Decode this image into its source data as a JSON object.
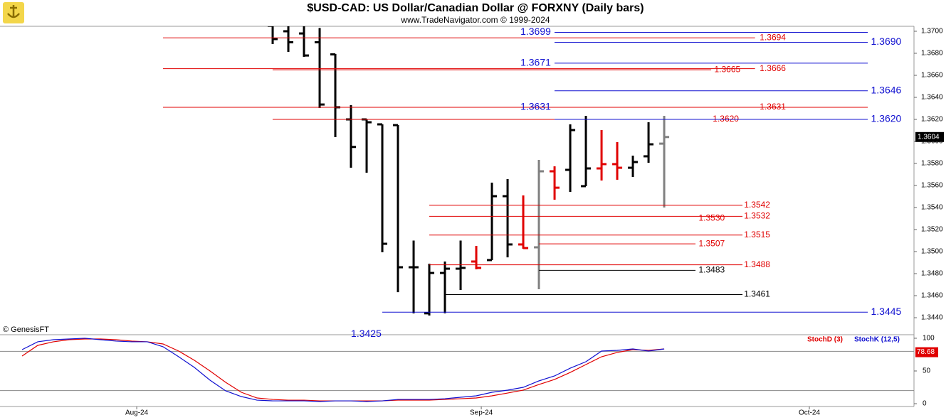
{
  "chart_data": [
    {
      "type": "ohlc",
      "title": "$USD-CAD:  US Dollar/Canadian Dollar @ FORXNY  (Daily bars)",
      "subtitle": "www.TradeNavigator.com © 1999-2024",
      "annotation": "© GenesisFT",
      "x": [
        0,
        1,
        2,
        3,
        4,
        5,
        6,
        7,
        8,
        9,
        10,
        11,
        12,
        13,
        14,
        15,
        16,
        17,
        18,
        19,
        20,
        21,
        22,
        23,
        24,
        25
      ],
      "open": [
        1.3705,
        1.37,
        1.3698,
        1.369,
        1.3679,
        1.362,
        1.362,
        1.36155,
        1.36148,
        1.34858,
        1.3444,
        1.34806,
        1.34845,
        1.3491,
        1.34923,
        1.35503,
        1.35065,
        1.35039,
        1.35729,
        1.35742,
        1.35594,
        1.35755,
        1.35794,
        1.35761,
        1.35865,
        1.3598
      ],
      "high": [
        1.371,
        1.3708,
        1.3705,
        1.3703,
        1.36794,
        1.3633,
        1.362,
        1.36155,
        1.36148,
        1.351,
        1.3489,
        1.3491,
        1.351,
        1.35052,
        1.35626,
        1.35658,
        1.3551,
        1.35832,
        1.35774,
        1.36155,
        1.36232,
        1.36103,
        1.35994,
        1.35871,
        1.36174,
        1.36232
      ],
      "low": [
        1.36884,
        1.36813,
        1.36768,
        1.36303,
        1.36039,
        1.35761,
        1.35716,
        1.34994,
        1.34632,
        1.34439,
        1.3442,
        1.3444,
        1.34652,
        1.34839,
        1.34923,
        1.34948,
        1.35026,
        1.34658,
        1.35471,
        1.35542,
        1.35594,
        1.35645,
        1.35652,
        1.35677,
        1.35806,
        1.354
      ],
      "close": [
        1.36929,
        1.369,
        1.3678,
        1.36335,
        1.3631,
        1.3595,
        1.36174,
        1.35071,
        1.34858,
        1.34858,
        1.34806,
        1.34845,
        1.34852,
        1.34852,
        1.35503,
        1.35065,
        1.35032,
        1.35729,
        1.3558,
        1.36103,
        1.35755,
        1.35794,
        1.35761,
        1.35813,
        1.35974,
        1.3604
      ],
      "colors": [
        "#000",
        "#000",
        "#000",
        "#000",
        "#000",
        "#000",
        "#000",
        "#000",
        "#000",
        "#000",
        "#000",
        "#000",
        "#000",
        "#e00000",
        "#000",
        "#000",
        "#e00000",
        "#808080",
        "#e00000",
        "#000",
        "#000",
        "#e00000",
        "#e00000",
        "#000",
        "#000",
        "#808080"
      ],
      "last_price": 1.3604,
      "xlim": [
        -17.41,
        40.95
      ],
      "ylim": [
        1.34252,
        1.37045
      ],
      "yticks": [
        {
          "value": 1.344,
          "label": "1.3440"
        },
        {
          "value": 1.346,
          "label": "1.3460"
        },
        {
          "value": 1.348,
          "label": "1.3480"
        },
        {
          "value": 1.35,
          "label": "1.3500"
        },
        {
          "value": 1.352,
          "label": "1.3520"
        },
        {
          "value": 1.354,
          "label": "1.3540"
        },
        {
          "value": 1.356,
          "label": "1.3560"
        },
        {
          "value": 1.358,
          "label": "1.3580"
        },
        {
          "value": 1.36,
          "label": "1.3600"
        },
        {
          "value": 1.362,
          "label": "1.3620"
        },
        {
          "value": 1.364,
          "label": "1.3640"
        },
        {
          "value": 1.366,
          "label": "1.3660"
        },
        {
          "value": 1.368,
          "label": "1.3680"
        },
        {
          "value": 1.37,
          "label": "1.3700"
        }
      ],
      "levels": [
        {
          "value": 1.3699,
          "label": "1.3699",
          "color": "#1010d0",
          "from": 18,
          "to": 38,
          "label_x": 15.82
        },
        {
          "value": 1.3694,
          "label": "1.3694",
          "color": "#e00000",
          "from": -7,
          "to": 30.8,
          "label_x": 31.1
        },
        {
          "value": 1.369,
          "label": "1.3690",
          "color": "#1010d0",
          "from": 18,
          "to": 38,
          "label_x": 38.2
        },
        {
          "value": 1.3671,
          "label": "1.3671",
          "color": "#1010d0",
          "from": 18,
          "to": 38,
          "label_x": 15.82
        },
        {
          "value": 1.3666,
          "label": "1.3666",
          "color": "#e00000",
          "from": -7,
          "to": 30.8,
          "label_x": 31.1
        },
        {
          "value": 1.3665,
          "label": "1.3665",
          "color": "#e00000",
          "from": 0,
          "to": 28,
          "label_x": 28.2
        },
        {
          "value": 1.3646,
          "label": "1.3646",
          "color": "#1010d0",
          "from": 18,
          "to": 38,
          "label_x": 38.2
        },
        {
          "value": 1.3631,
          "label": "1.3631",
          "color": "#e00000",
          "from": -7,
          "to": 38,
          "label_x": 31.1
        },
        {
          "value": 1.3631,
          "label": "1.3631",
          "color": "#1010d0",
          "from": 18,
          "to": 18,
          "label_x": 15.82
        },
        {
          "value": 1.362,
          "label": "1.3620",
          "color": "#e00000",
          "from": 0,
          "to": 18,
          "label_x": 28.1
        },
        {
          "value": 1.362,
          "label": "1.3620",
          "color": "#1010d0",
          "from": 18,
          "to": 38,
          "label_x": 38.2
        },
        {
          "value": 1.3542,
          "label": "1.3542",
          "color": "#e00000",
          "from": 10,
          "to": 30,
          "label_x": 30.1
        },
        {
          "value": 1.3532,
          "label": "1.3532",
          "color": "#e00000",
          "from": 10,
          "to": 30,
          "label_x": 30.1
        },
        {
          "value": 1.353,
          "label": "1.3530",
          "color": "#e00000",
          "from": 27,
          "to": 27,
          "label_x": 27.2
        },
        {
          "value": 1.3515,
          "label": "1.3515",
          "color": "#e00000",
          "from": 10,
          "to": 30,
          "label_x": 30.1
        },
        {
          "value": 1.3507,
          "label": "1.3507",
          "color": "#e00000",
          "from": 17,
          "to": 27,
          "label_x": 27.2
        },
        {
          "value": 1.3488,
          "label": "1.3488",
          "color": "#e00000",
          "from": 10,
          "to": 30,
          "label_x": 30.1
        },
        {
          "value": 1.3483,
          "label": "1.3483",
          "color": "#000000",
          "from": 17,
          "to": 27,
          "label_x": 27.2
        },
        {
          "value": 1.3461,
          "label": "1.3461",
          "color": "#000000",
          "from": 11,
          "to": 30,
          "label_x": 30.1
        },
        {
          "value": 1.3445,
          "label": "1.3445",
          "color": "#1010d0",
          "from": 7,
          "to": 38,
          "label_x": 38.2
        },
        {
          "value": 1.3425,
          "label": "1.3425",
          "color": "#1010d0",
          "from": 5,
          "to": 5,
          "label_x": 5
        }
      ]
    },
    {
      "type": "line",
      "x": [
        -16,
        -15,
        -14,
        -13,
        -12,
        -11,
        -10,
        -9,
        -8,
        -7,
        -6,
        -5,
        -4,
        -3,
        -2,
        -1,
        0,
        1,
        2,
        3,
        4,
        5,
        6,
        7,
        8,
        9,
        10,
        11,
        12,
        13,
        14,
        15,
        16,
        17,
        18,
        19,
        20,
        21,
        22,
        23,
        24,
        25
      ],
      "series": [
        {
          "name": "StochD (3)",
          "color": "#e00000",
          "values": [
            72.8,
            89.1,
            94.6,
            97.8,
            98.9,
            98.9,
            97.8,
            95.7,
            94.6,
            91.3,
            80.4,
            66.3,
            50,
            32.6,
            17.4,
            8.7,
            6.5,
            5.4,
            5.4,
            4.3,
            4.3,
            4.3,
            4.3,
            4.3,
            5.4,
            5.4,
            5.4,
            6.5,
            7.6,
            8.7,
            12,
            16.3,
            20.7,
            29.3,
            37,
            47.8,
            59.8,
            71.7,
            78.3,
            82.6,
            81.5,
            83.7
          ]
        },
        {
          "name": "StochK (12,5)",
          "color": "#1010d0",
          "values": [
            82.6,
            94.6,
            97.8,
            98.9,
            100,
            97.8,
            95.7,
            94.6,
            94.6,
            87,
            71.7,
            55.4,
            35.9,
            19.6,
            10.9,
            5.4,
            4.3,
            4.3,
            4.3,
            3.3,
            4.3,
            4.3,
            3.3,
            4.3,
            6.5,
            6.5,
            6.5,
            7.6,
            9.8,
            12,
            17.4,
            20.7,
            25,
            34.8,
            42.4,
            54.3,
            64.1,
            80.4,
            81.5,
            83.7,
            80.4,
            83.7
          ]
        }
      ],
      "last_value": 78.68,
      "ylim": [
        -4.3,
        104.3
      ],
      "yticks": [
        0,
        50,
        100
      ],
      "hlines": [
        20,
        80
      ],
      "xlim": [
        -17.41,
        40.95
      ],
      "xticks": [
        {
          "value": -8.68,
          "label": "Aug-24"
        },
        {
          "value": 13.32,
          "label": "Sep-24"
        },
        {
          "value": 34.27,
          "label": "Oct-24"
        }
      ]
    }
  ]
}
